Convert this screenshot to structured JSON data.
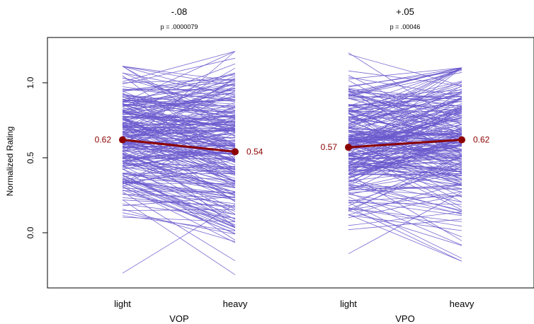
{
  "chart_data": {
    "type": "line",
    "ylabel": "Normalized Rating",
    "ylim": [
      -0.37,
      1.28
    ],
    "yticks": [
      0.0,
      0.5,
      1.0
    ],
    "ytick_labels": [
      "0.0",
      "0.5",
      "1.0"
    ],
    "grid": false,
    "colors": {
      "participant_lines": "#6a5acd",
      "mean": "#8b0000"
    },
    "panels": [
      {
        "condition": "VOP",
        "difference": "-.08",
        "p_value": "p = .0000079",
        "categories": [
          "light",
          "heavy"
        ],
        "mean": [
          0.62,
          0.54
        ],
        "mean_labels": [
          "0.62",
          "0.54"
        ],
        "participant_range_light": [
          -0.27,
          1.11
        ],
        "participant_range_heavy": [
          -0.28,
          1.21
        ],
        "participant_lines_count_approx": 250
      },
      {
        "condition": "VPO",
        "difference": "+.05",
        "p_value": "p = .00046",
        "categories": [
          "light",
          "heavy"
        ],
        "mean": [
          0.57,
          0.62
        ],
        "mean_labels": [
          "0.57",
          "0.62"
        ],
        "participant_range_light": [
          -0.14,
          1.2
        ],
        "participant_range_heavy": [
          -0.19,
          1.1
        ],
        "participant_lines_count_approx": 250
      }
    ]
  }
}
